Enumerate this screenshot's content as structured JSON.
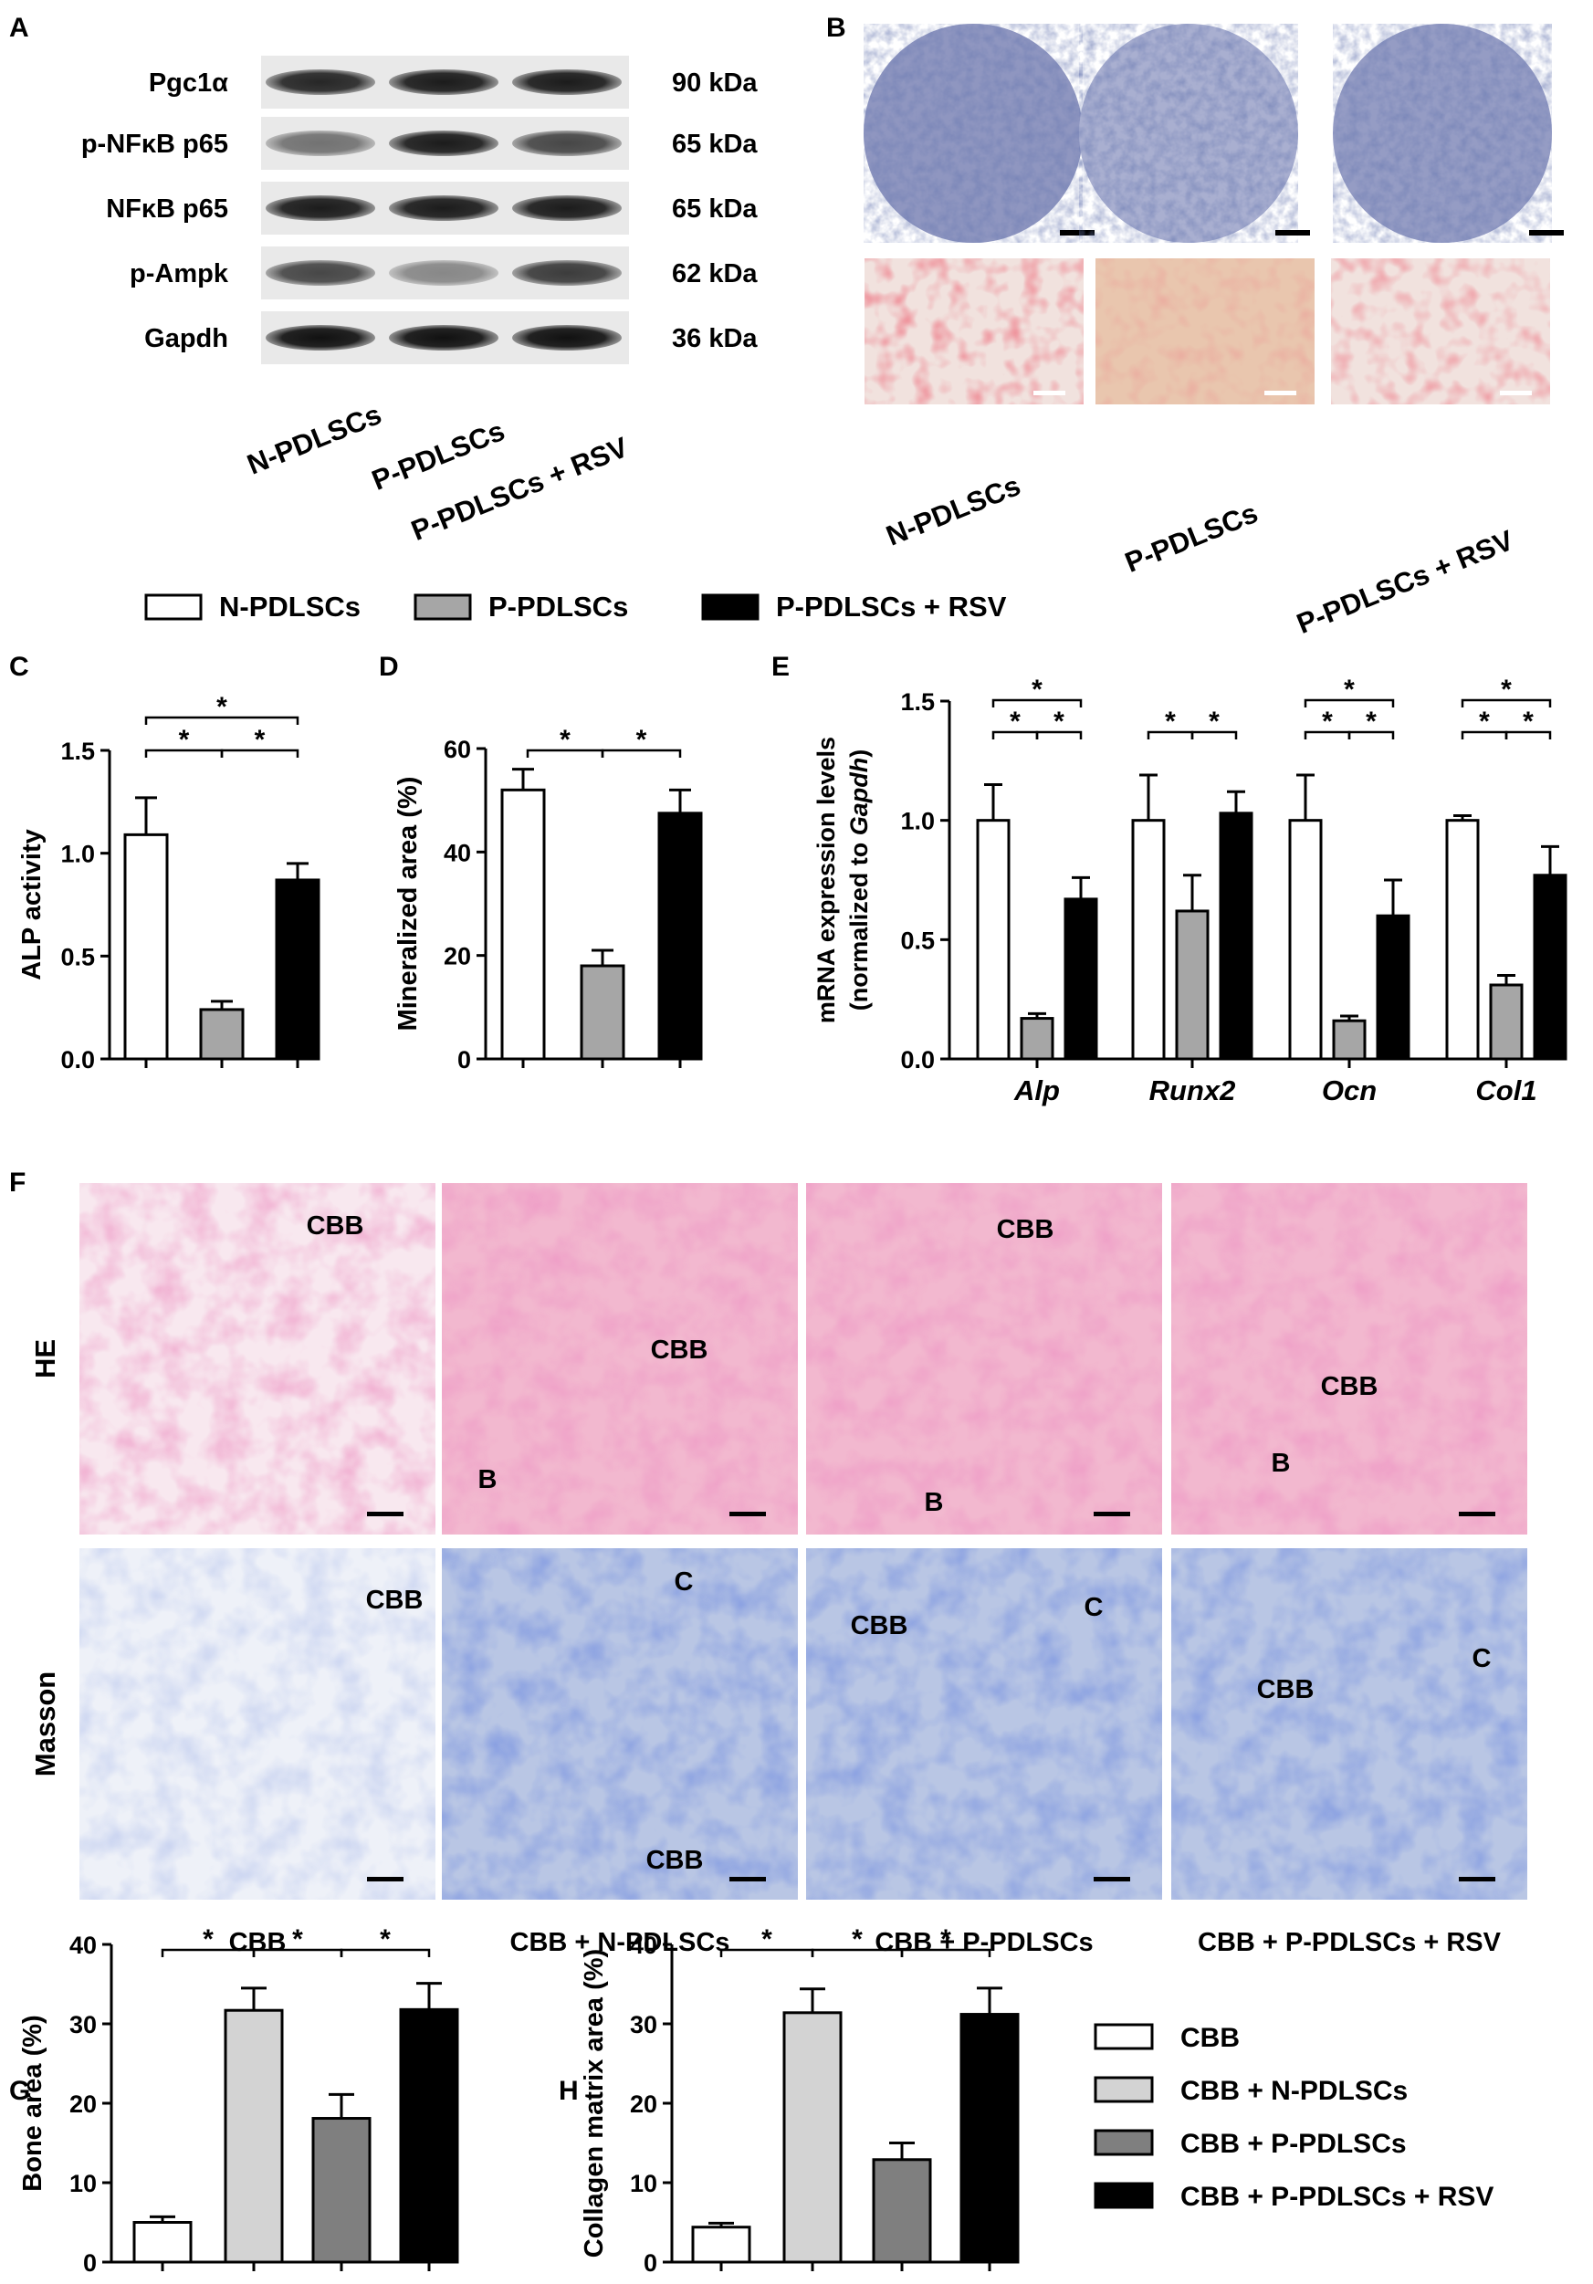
{
  "panels": {
    "A": {
      "letter": "A",
      "proteins": [
        "Pgc1α",
        "p-NFκB p65",
        "NFκB p65",
        "p-Ampk",
        "Gapdh"
      ],
      "weights": [
        "90 kDa",
        "65 kDa",
        "65 kDa",
        "62 kDa",
        "36 kDa"
      ],
      "lanes": [
        "N-PDLSCs",
        "P-PDLSCs",
        "P-PDLSCs + RSV"
      ]
    },
    "B": {
      "letter": "B",
      "groups": [
        "N-PDLSCs",
        "P-PDLSCs",
        "P-PDLSCs + RSV"
      ]
    },
    "legend_top": [
      "N-PDLSCs",
      "P-PDLSCs",
      "P-PDLSCs + RSV"
    ],
    "F": {
      "letter": "F",
      "rows": [
        "HE",
        "Masson"
      ],
      "columns": [
        "CBB",
        "CBB + N-PDLSCs",
        "CBB + P-PDLSCs",
        "CBB + P-PDLSCs + RSV"
      ],
      "he_tags": [
        [
          "CBB"
        ],
        [
          "CBB",
          "B"
        ],
        [
          "CBB",
          "B"
        ],
        [
          "CBB",
          "B"
        ]
      ],
      "masson_tags": [
        [
          "CBB"
        ],
        [
          "C",
          "CBB"
        ],
        [
          "CBB",
          "C"
        ],
        [
          "CBB",
          "C"
        ]
      ]
    },
    "legend_bottom": [
      "CBB",
      "CBB + N-PDLSCs",
      "CBB + P-PDLSCs",
      "CBB + P-PDLSCs + RSV"
    ]
  },
  "colors": {
    "white_bar": "#ffffff",
    "gray_bar": "#a6a6a6",
    "black_bar": "#000000",
    "lightgray_bar": "#d3d3d3",
    "midgray_bar": "#7f7f7f",
    "he_pink": "#f2b8cf",
    "masson_blue": "#b9c6e4",
    "ars_red": "#d8303a",
    "alp_purple": "#4d5896"
  },
  "chart_data": [
    {
      "letter": "C",
      "type": "bar",
      "categories": [
        "N-PDLSCs",
        "P-PDLSCs",
        "P-PDLSCs + RSV"
      ],
      "values": [
        1.09,
        0.24,
        0.87
      ],
      "errors": [
        0.18,
        0.04,
        0.08
      ],
      "ylabel": "ALP activity",
      "ylim": [
        0,
        1.5
      ],
      "yticks": [
        "0.0",
        "0.5",
        "1.0",
        "1.5"
      ],
      "significance": "*"
    },
    {
      "letter": "D",
      "type": "bar",
      "categories": [
        "N-PDLSCs",
        "P-PDLSCs",
        "P-PDLSCs + RSV"
      ],
      "values": [
        52,
        18,
        47.5
      ],
      "errors": [
        4,
        3,
        4.5
      ],
      "ylabel": "Mineralized area (%)",
      "ylim": [
        0,
        60
      ],
      "yticks": [
        "0",
        "20",
        "40",
        "60"
      ],
      "significance": "*"
    },
    {
      "letter": "E",
      "type": "bar",
      "categories": [
        "Alp",
        "Runx2",
        "Ocn",
        "Col1"
      ],
      "series": [
        {
          "name": "N-PDLSCs",
          "values": [
            1.0,
            1.0,
            1.0,
            1.0
          ],
          "errors": [
            0.15,
            0.19,
            0.19,
            0.02
          ]
        },
        {
          "name": "P-PDLSCs",
          "values": [
            0.17,
            0.62,
            0.16,
            0.31
          ],
          "errors": [
            0.02,
            0.15,
            0.02,
            0.04
          ]
        },
        {
          "name": "P-PDLSCs + RSV",
          "values": [
            0.67,
            1.03,
            0.6,
            0.77
          ],
          "errors": [
            0.09,
            0.09,
            0.15,
            0.12
          ]
        }
      ],
      "ylabel_line1": "mRNA expression levels",
      "ylabel_line2_prefix": "(normalized to ",
      "ylabel_line2_gene": "Gapdh",
      "ylabel_line2_suffix": ")",
      "ylim": [
        0,
        1.5
      ],
      "yticks": [
        "0.0",
        "0.5",
        "1.0",
        "1.5"
      ],
      "significance": "*"
    },
    {
      "letter": "G",
      "type": "bar",
      "categories": [
        "CBB",
        "CBB + N-PDLSCs",
        "CBB + P-PDLSCs",
        "CBB + P-PDLSCs + RSV"
      ],
      "values": [
        5,
        31.7,
        18.1,
        31.8
      ],
      "errors": [
        0.7,
        2.8,
        3.0,
        3.3
      ],
      "ylabel": "Bone area (%)",
      "ylim": [
        0,
        40
      ],
      "yticks": [
        "0",
        "10",
        "20",
        "30",
        "40"
      ],
      "significance": "*"
    },
    {
      "letter": "H",
      "type": "bar",
      "categories": [
        "CBB",
        "CBB + N-PDLSCs",
        "CBB + P-PDLSCs",
        "CBB + P-PDLSCs + RSV"
      ],
      "values": [
        4.4,
        31.4,
        12.9,
        31.2
      ],
      "errors": [
        0.5,
        3.0,
        2.1,
        3.3
      ],
      "ylabel": "Collagen matrix area (%)",
      "ylim": [
        0,
        40
      ],
      "yticks": [
        "0",
        "10",
        "20",
        "30",
        "40"
      ],
      "significance": "*"
    }
  ]
}
